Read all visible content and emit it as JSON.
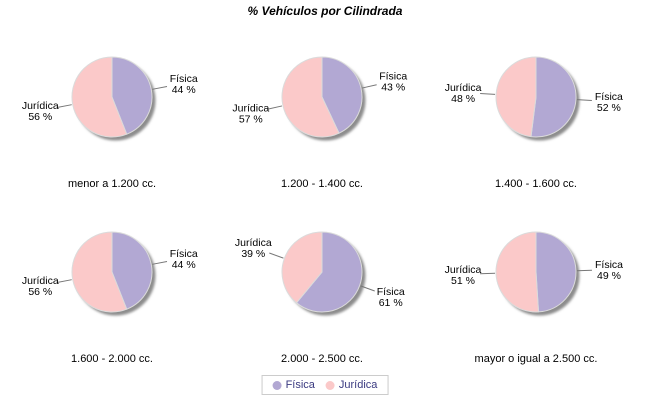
{
  "title": "% Vehículos por Cilindrada",
  "legend": {
    "items": [
      {
        "label": "Física",
        "color": "#B2A8D3"
      },
      {
        "label": "Jurídica",
        "color": "#FBC9C9"
      }
    ]
  },
  "chart_data": {
    "type": "pie",
    "title": "% Vehículos por Cilindrada",
    "layout": {
      "rows": 2,
      "cols": 3,
      "legend_position": "bottom"
    },
    "series_names": [
      "Física",
      "Jurídica"
    ],
    "unit": "%",
    "colors": {
      "Física": "#B2A8D3",
      "Jurídica": "#FBC9C9"
    },
    "pies": [
      {
        "category": "menor a 1.200 cc.",
        "slices": [
          {
            "name": "Física",
            "value": 44
          },
          {
            "name": "Jurídica",
            "value": 56
          }
        ]
      },
      {
        "category": "1.200 - 1.400 cc.",
        "slices": [
          {
            "name": "Física",
            "value": 43
          },
          {
            "name": "Jurídica",
            "value": 57
          }
        ]
      },
      {
        "category": "1.400 - 1.600 cc.",
        "slices": [
          {
            "name": "Física",
            "value": 52
          },
          {
            "name": "Jurídica",
            "value": 48
          }
        ]
      },
      {
        "category": "1.600 - 2.000 cc.",
        "slices": [
          {
            "name": "Física",
            "value": 44
          },
          {
            "name": "Jurídica",
            "value": 56
          }
        ]
      },
      {
        "category": "2.000 - 2.500 cc.",
        "slices": [
          {
            "name": "Física",
            "value": 61
          },
          {
            "name": "Jurídica",
            "value": 39
          }
        ]
      },
      {
        "category": "mayor o igual a 2.500 cc.",
        "slices": [
          {
            "name": "Física",
            "value": 49
          },
          {
            "name": "Jurídica",
            "value": 51
          }
        ]
      }
    ],
    "styles": {
      "shadow_color": "#8C8C8C",
      "slice_outline": "#DBDBDB",
      "leader_line_color": "#777777",
      "label_color": "#000000",
      "legend_text_color": "#3A3A80",
      "legend_border_color": "#CCCCCC",
      "background": "#FFFFFF"
    }
  }
}
